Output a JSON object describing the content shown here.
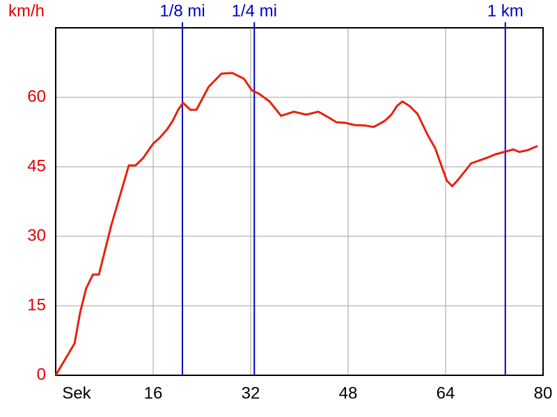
{
  "chart_data": {
    "type": "line",
    "y_label": "km/h",
    "x_label": "Sek",
    "xlim": [
      0,
      80
    ],
    "ylim": [
      0,
      75
    ],
    "xticks": [
      16,
      32,
      48,
      64,
      80
    ],
    "yticks": [
      0,
      15,
      30,
      45,
      60
    ],
    "grid": true,
    "color": "#e8200c",
    "axis_label_color": "#e00000",
    "marker_color": "#0000c0",
    "x": [
      0,
      3.1,
      4.0,
      5.0,
      6.1,
      7.1,
      9.1,
      12,
      13.1,
      14.3,
      16,
      17.1,
      18.3,
      19.2,
      20.1,
      20.9,
      22.1,
      23.1,
      25.1,
      27.2,
      29,
      30.9,
      32.2,
      33.4,
      35.1,
      37,
      39.1,
      41.1,
      43.1,
      44.6,
      46.1,
      47.5,
      49.1,
      50.9,
      52.2,
      54,
      55.1,
      56,
      56.9,
      58.1,
      59.4,
      61.1,
      62.3,
      64.2,
      65.1,
      66.3,
      68.2,
      70.9,
      72.2,
      74.3,
      75.1,
      76.1,
      77.5,
      79.1
    ],
    "values": [
      0,
      6.9,
      13.5,
      18.75,
      21.75,
      21.75,
      32.25,
      45.3,
      45.3,
      46.8,
      50,
      51.3,
      53.1,
      54.9,
      57.3,
      58.8,
      57.3,
      57.3,
      62.25,
      65.1,
      65.25,
      64,
      61.5,
      60.75,
      59.1,
      56,
      56.9,
      56.25,
      56.9,
      55.8,
      54.6,
      54.5,
      54,
      53.9,
      53.6,
      54.9,
      56.25,
      58.1,
      59.1,
      58.1,
      56.4,
      51.75,
      49,
      42,
      40.8,
      42.6,
      45.75,
      47,
      47.7,
      48.45,
      48.75,
      48.2,
      48.6,
      49.5
    ],
    "markers": [
      {
        "label": "1/8 mi",
        "x": 20.8
      },
      {
        "label": "1/4 mi",
        "x": 32.6
      },
      {
        "label": "1 km",
        "x": 73.8
      }
    ]
  }
}
